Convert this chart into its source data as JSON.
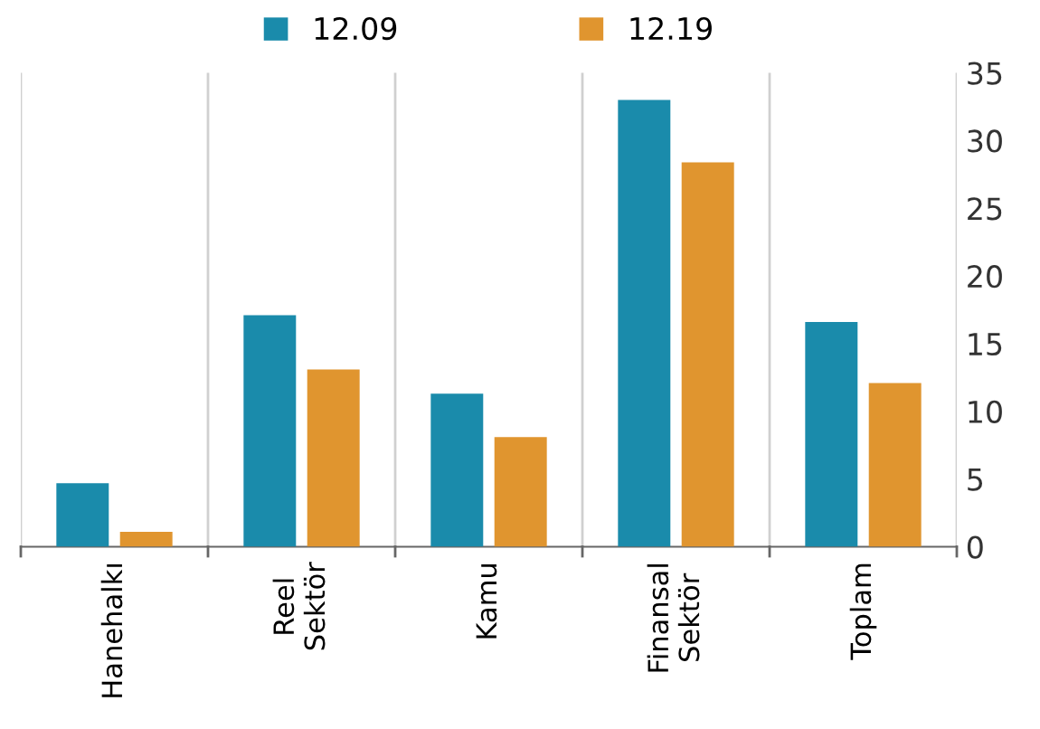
{
  "chart_data": {
    "type": "bar",
    "categories": [
      "Hanehalkı",
      "Reel\nSektör",
      "Kamu",
      "Finansal\nSektör",
      "Toplam"
    ],
    "series": [
      {
        "name": "12.09",
        "color": "#1a8bab",
        "values": [
          4.7,
          17.1,
          11.3,
          33.0,
          16.6
        ]
      },
      {
        "name": "12.19",
        "color": "#e0952f",
        "values": [
          1.1,
          13.1,
          8.1,
          28.4,
          12.1
        ]
      }
    ],
    "ylim": [
      0,
      35
    ],
    "yticks": [
      0,
      5,
      10,
      15,
      20,
      25,
      30,
      35
    ],
    "grid": "x",
    "legend": "top"
  }
}
